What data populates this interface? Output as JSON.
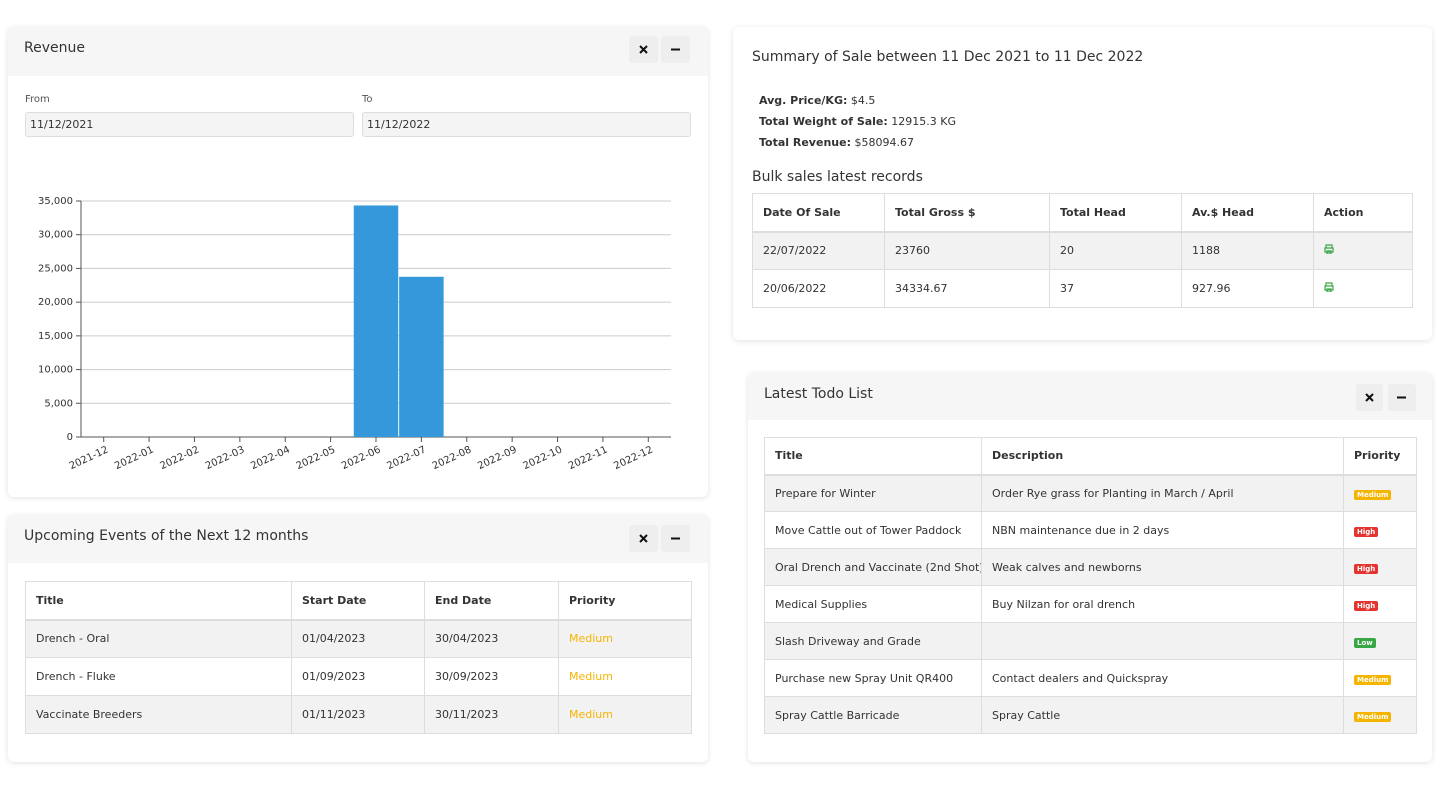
{
  "revenue_panel": {
    "title": "Revenue",
    "from": {
      "label": "From",
      "value": "11/12/2021"
    },
    "to": {
      "label": "To",
      "value": "11/12/2022"
    }
  },
  "chart_data": {
    "type": "bar",
    "categories": [
      "2021-12",
      "2022-01",
      "2022-02",
      "2022-03",
      "2022-04",
      "2022-05",
      "2022-06",
      "2022-07",
      "2022-08",
      "2022-09",
      "2022-10",
      "2022-11",
      "2022-12"
    ],
    "values": [
      0,
      0,
      0,
      0,
      0,
      0,
      34334.67,
      23760,
      0,
      0,
      0,
      0,
      0
    ],
    "color": "#3498db",
    "ylim": [
      0,
      35000
    ],
    "yticks": [
      0,
      {
        "value": 5000,
        "label": "5,000"
      },
      {
        "value": 10000,
        "label": "10,000"
      },
      {
        "value": 15000,
        "label": "15,000"
      },
      {
        "value": 20000,
        "label": "20,000"
      },
      {
        "value": 25000,
        "label": "25,000"
      },
      {
        "value": 30000,
        "label": "30,000"
      },
      {
        "value": 35000,
        "label": "35,000"
      }
    ],
    "grid": true
  },
  "events_panel": {
    "title": "Upcoming Events of the Next 12 months",
    "headers": [
      "Title",
      "Start Date",
      "End Date",
      "Priority"
    ],
    "rows": [
      [
        "Drench - Oral",
        "01/04/2023",
        "30/04/2023",
        "Medium"
      ],
      [
        "Drench - Fluke",
        "01/09/2023",
        "30/09/2023",
        "Medium"
      ],
      [
        "Vaccinate Breeders",
        "01/11/2023",
        "30/11/2023",
        "Medium"
      ]
    ]
  },
  "summary_panel": {
    "title": "Summary of Sale between 11 Dec 2021 to 11 Dec 2022",
    "stats": [
      {
        "label": "Avg. Price/KG:",
        "value": "$4.5"
      },
      {
        "label": "Total Weight of Sale:",
        "value": "12915.3 KG"
      },
      {
        "label": "Total Revenue:",
        "value": "$58094.67"
      }
    ],
    "bulk_title": "Bulk sales latest records",
    "headers": [
      "Date Of Sale",
      "Total Gross $",
      "Total Head",
      "Av.$ Head",
      "Action"
    ],
    "rows": [
      [
        "22/07/2022",
        23760,
        20,
        1188
      ],
      [
        "20/06/2022",
        34334.67,
        37,
        927.96
      ]
    ]
  },
  "todo_panel": {
    "title": "Latest Todo List",
    "headers": [
      "Title",
      "Description",
      "Priority"
    ],
    "rows": [
      [
        "Prepare for Winter",
        "Order Rye grass for Planting in March / April",
        "Medium"
      ],
      [
        "Move Cattle out of Tower Paddock",
        "NBN maintenance due in 2 days",
        "High"
      ],
      [
        "Oral Drench and Vaccinate (2nd Shot)",
        "Weak calves and newborns",
        "High"
      ],
      [
        "Medical Supplies",
        "Buy Nilzan for oral drench",
        "High"
      ],
      [
        "Slash Driveway and Grade",
        null,
        "Low"
      ],
      [
        "Purchase new Spray Unit QR400",
        "Contact dealers and Quickspray",
        "Medium"
      ],
      [
        "Spray Cattle Barricade",
        "Spray Cattle",
        "Medium"
      ]
    ]
  },
  "priority_colors": {
    "Medium": "#f5b400",
    "High": "#e3342f",
    "Low": "#38a745"
  }
}
